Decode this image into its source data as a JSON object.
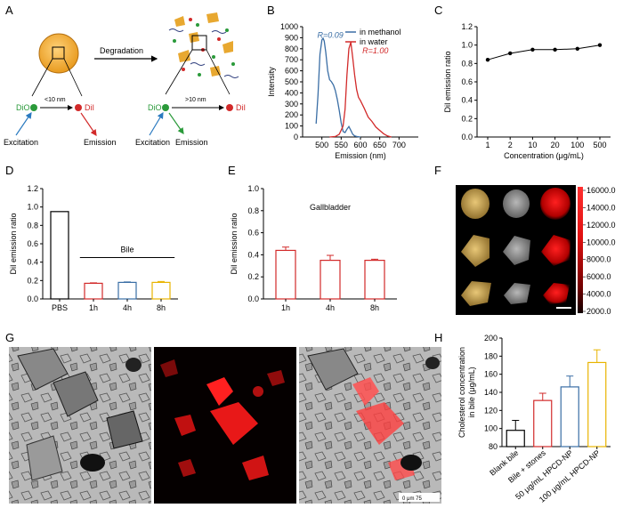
{
  "panels": {
    "A": "A",
    "B": "B",
    "C": "C",
    "D": "D",
    "E": "E",
    "F": "F",
    "G": "G",
    "H": "H"
  },
  "schematic": {
    "degradation": "Degradation",
    "dio": "DiO",
    "dil": "DiI",
    "near": "<10 nm",
    "far": ">10 nm",
    "excitation": "Excitation",
    "emission": "Emission"
  },
  "micro": {
    "scale_label": "0      μm      75"
  },
  "fluor_scale": {
    "ticks": [
      "16000.0",
      "14000.0",
      "12000.0",
      "10000.0",
      "8000.0",
      "6000.0",
      "4000.0",
      "2000.0"
    ]
  },
  "chart_data": [
    {
      "id": "B",
      "type": "line",
      "xlabel": "Emission (nm)",
      "ylabel": "Intensity",
      "xlim": [
        450,
        750
      ],
      "ylim": [
        0,
        1000
      ],
      "xticks": [
        500,
        550,
        600,
        650,
        700
      ],
      "yticks": [
        0,
        100,
        200,
        300,
        400,
        500,
        600,
        700,
        800,
        900,
        1000
      ],
      "annotations": [
        "R=0.09",
        "R=1.00"
      ],
      "legend_position": "top-right",
      "series": [
        {
          "name": "in methanol",
          "color": "#3a6ea5",
          "x": [
            485,
            490,
            495,
            500,
            503,
            506,
            510,
            515,
            520,
            525,
            530,
            535,
            540,
            545,
            550,
            555,
            560,
            565,
            570,
            575,
            580,
            585,
            590,
            600
          ],
          "y": [
            120,
            380,
            750,
            880,
            895,
            870,
            770,
            600,
            520,
            500,
            470,
            420,
            340,
            240,
            130,
            50,
            40,
            70,
            95,
            60,
            25,
            10,
            5,
            0
          ]
        },
        {
          "name": "in water",
          "color": "#d22a2a",
          "x": [
            520,
            535,
            545,
            555,
            560,
            565,
            570,
            575,
            580,
            585,
            590,
            595,
            600,
            610,
            620,
            630,
            640,
            650,
            660,
            670,
            680
          ],
          "y": [
            0,
            5,
            25,
            100,
            250,
            560,
            800,
            860,
            720,
            560,
            430,
            360,
            330,
            260,
            180,
            140,
            90,
            60,
            30,
            10,
            0
          ]
        }
      ]
    },
    {
      "id": "C",
      "type": "line",
      "xlabel": "Concentration (μg/mL)",
      "ylabel": "DiI emission ratio",
      "categories": [
        "1",
        "2",
        "10",
        "20",
        "100",
        "500"
      ],
      "values": [
        0.84,
        0.91,
        0.95,
        0.95,
        0.96,
        1.0
      ],
      "ylim": [
        0,
        1.2
      ],
      "yticks": [
        "0.0",
        "0.2",
        "0.4",
        "0.6",
        "0.8",
        "1.0",
        "1.2"
      ]
    },
    {
      "id": "D",
      "type": "bar",
      "ylabel": "DiI emission ratio",
      "categories": [
        "PBS",
        "1h",
        "4h",
        "8h"
      ],
      "values": [
        0.95,
        0.17,
        0.18,
        0.18
      ],
      "errors": [
        0,
        0.005,
        0.005,
        0.01
      ],
      "colors": [
        "#000000",
        "#d22a2a",
        "#3a6ea5",
        "#e8b400"
      ],
      "group_label": "Bile",
      "ylim": [
        0,
        1.2
      ],
      "yticks": [
        "0.0",
        "0.2",
        "0.4",
        "0.6",
        "0.8",
        "1.0",
        "1.2"
      ]
    },
    {
      "id": "E",
      "type": "bar",
      "title": "Gallbladder",
      "ylabel": "DiI emission ratio",
      "categories": [
        "1h",
        "4h",
        "8h"
      ],
      "values": [
        0.44,
        0.35,
        0.35
      ],
      "errors": [
        0.03,
        0.045,
        0.01
      ],
      "colors": [
        "#d22a2a",
        "#d22a2a",
        "#d22a2a"
      ],
      "ylim": [
        0,
        1.0
      ],
      "yticks": [
        "0.0",
        "0.2",
        "0.4",
        "0.6",
        "0.8",
        "1.0"
      ]
    },
    {
      "id": "H",
      "type": "bar",
      "ylabel": "Cholesterol concentration in bile (μg/mL)",
      "categories": [
        "Blank bile",
        "Bile + stones",
        "50 μg/mL HPCD-NP",
        "100 μg/mL HPCD-NP"
      ],
      "values": [
        98,
        131,
        146,
        173
      ],
      "errors": [
        11,
        8,
        12,
        14
      ],
      "colors": [
        "#000000",
        "#d22a2a",
        "#3a6ea5",
        "#e8b400"
      ],
      "ylim": [
        80,
        200
      ],
      "yticks": [
        "80",
        "100",
        "120",
        "140",
        "160",
        "180",
        "200"
      ]
    }
  ]
}
